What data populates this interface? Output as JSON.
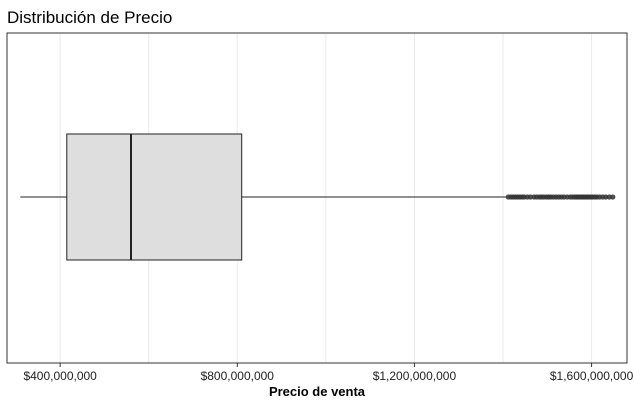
{
  "chart_data": {
    "type": "boxplot",
    "title": "Distribución de Precio",
    "xlabel": "Precio de venta",
    "ylabel": "",
    "orientation": "horizontal",
    "xlim": [
      280000000,
      1680000000
    ],
    "x_ticks": [
      400000000,
      800000000,
      1200000000,
      1600000000
    ],
    "x_tick_labels": [
      "$400,000,000",
      "$800,000,000",
      "$1,200,000,000",
      "$1,600,000,000"
    ],
    "grid": true,
    "box": {
      "whisker_low": 310000000,
      "q1": 415000000,
      "median": 560000000,
      "q3": 810000000,
      "whisker_high": 1410000000,
      "box_color": "#dedede",
      "line_color": "#222222"
    },
    "outliers": [
      1412000000,
      1418000000,
      1423000000,
      1428000000,
      1433000000,
      1438000000,
      1443000000,
      1448000000,
      1455000000,
      1462000000,
      1470000000,
      1476000000,
      1482000000,
      1487000000,
      1492000000,
      1498000000,
      1503000000,
      1508000000,
      1514000000,
      1520000000,
      1526000000,
      1532000000,
      1538000000,
      1545000000,
      1552000000,
      1557000000,
      1562000000,
      1566000000,
      1570000000,
      1574000000,
      1578000000,
      1582000000,
      1586000000,
      1590000000,
      1594000000,
      1598000000,
      1602000000,
      1607000000,
      1612000000,
      1618000000,
      1625000000,
      1632000000,
      1640000000,
      1648000000
    ]
  }
}
